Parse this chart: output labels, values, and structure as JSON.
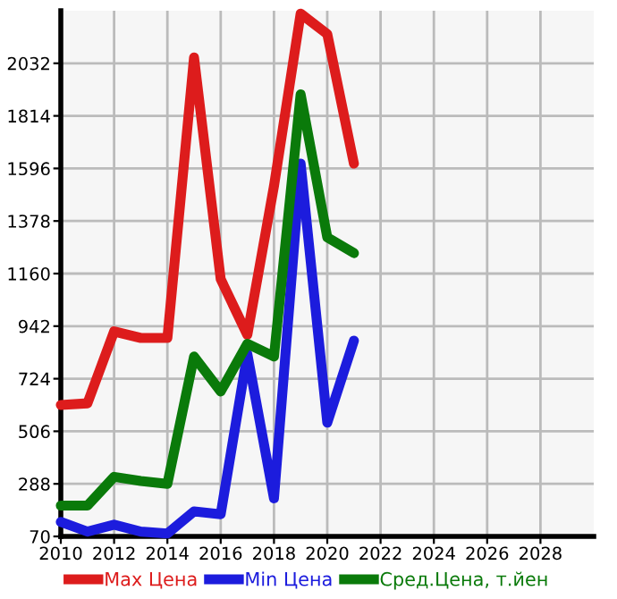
{
  "chart_data": {
    "type": "line",
    "x": [
      2010,
      2011,
      2012,
      2013,
      2014,
      2015,
      2016,
      2017,
      2018,
      2019,
      2020,
      2021
    ],
    "series": [
      {
        "name": "Max Цена",
        "color": "#dd1c1c",
        "values": [
          615,
          622,
          920,
          893,
          893,
          2056,
          1137,
          906,
          1523,
          2238,
          2153,
          1616
        ]
      },
      {
        "name": "Min Цена",
        "color": "#1c1cdd",
        "values": [
          130,
          90,
          119,
          90,
          82,
          174,
          162,
          826,
          228,
          1616,
          542,
          882
        ]
      },
      {
        "name": "Сред.Цена, т.йен",
        "color": "#0a7a0a",
        "values": [
          198,
          198,
          317,
          300,
          288,
          816,
          671,
          869,
          816,
          1903,
          1310,
          1245
        ]
      }
    ],
    "xlim": [
      2010,
      2030
    ],
    "xticks": [
      2010,
      2012,
      2014,
      2016,
      2018,
      2020,
      2022,
      2024,
      2026,
      2028
    ],
    "ylim": [
      70,
      2250
    ],
    "yticks": [
      70,
      288,
      506,
      724,
      942,
      1160,
      1378,
      1596,
      1814,
      2032
    ],
    "grid": true,
    "legend": "bottom",
    "marker": "none",
    "line_style": "solid"
  }
}
